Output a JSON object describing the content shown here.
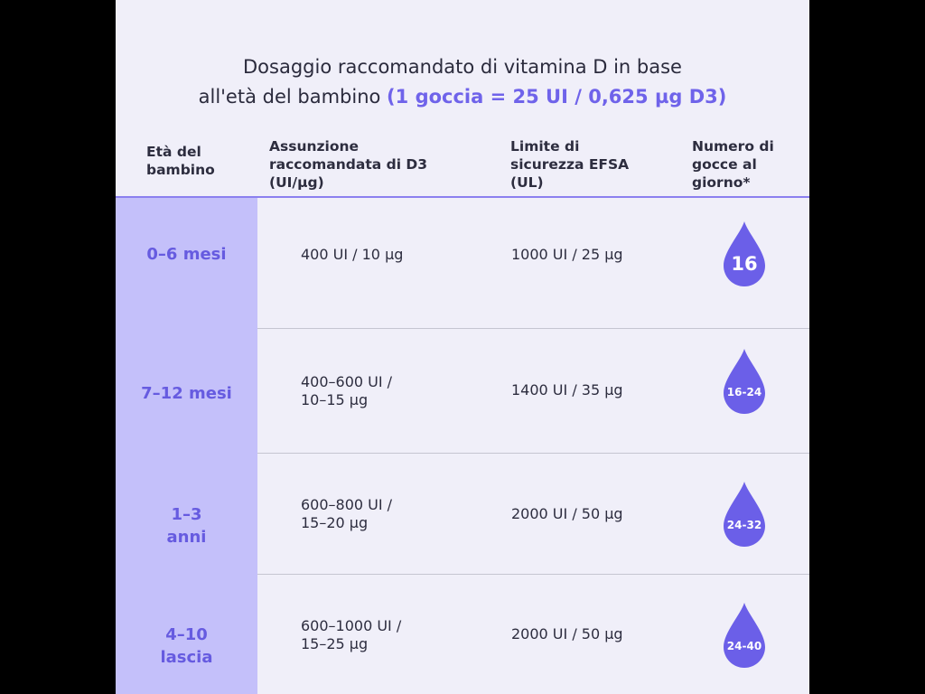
{
  "title": {
    "line1": "Dosaggio raccomandato di vitamina D in base",
    "line2_plain": "all'età del bambino",
    "line2_accent": "(1 goccia = 25 UI / 0,625 µg D3)"
  },
  "headers": {
    "age": [
      "Età del",
      "bambino"
    ],
    "intake": [
      "Assunzione",
      "raccomandata di D3",
      "(UI/µg)"
    ],
    "limit": [
      "Limite di",
      "sicurezza EFSA",
      "(UL)"
    ],
    "drops": [
      "Numero di",
      "gocce al",
      "giorno*"
    ]
  },
  "rows": [
    {
      "age": [
        "0–6 mesi"
      ],
      "intake": [
        "400 UI / 10 µg"
      ],
      "limit": "1000 UI / 25 µg",
      "drops": "16"
    },
    {
      "age": [
        "7–12 mesi"
      ],
      "intake": [
        "400–600 UI /",
        "10–15 µg"
      ],
      "limit": "1400 UI / 35 µg",
      "drops": "16-24"
    },
    {
      "age": [
        "1–3",
        "anni"
      ],
      "intake": [
        "600–800 UI /",
        "15–20 µg"
      ],
      "limit": "2000 UI / 50 µg",
      "drops": "24-32"
    },
    {
      "age": [
        "4–10",
        "lascia"
      ],
      "intake": [
        "600–1000 UI /",
        "15–25 µg"
      ],
      "limit": "2000 UI / 50 µg",
      "drops": "24-40"
    }
  ],
  "colors": {
    "accent": "#6f63ea",
    "drop": "#6b5fe8",
    "age_column": "#c4c0fa",
    "background": "#f0eff9"
  },
  "icons": {
    "drop": "water-drop-icon"
  }
}
